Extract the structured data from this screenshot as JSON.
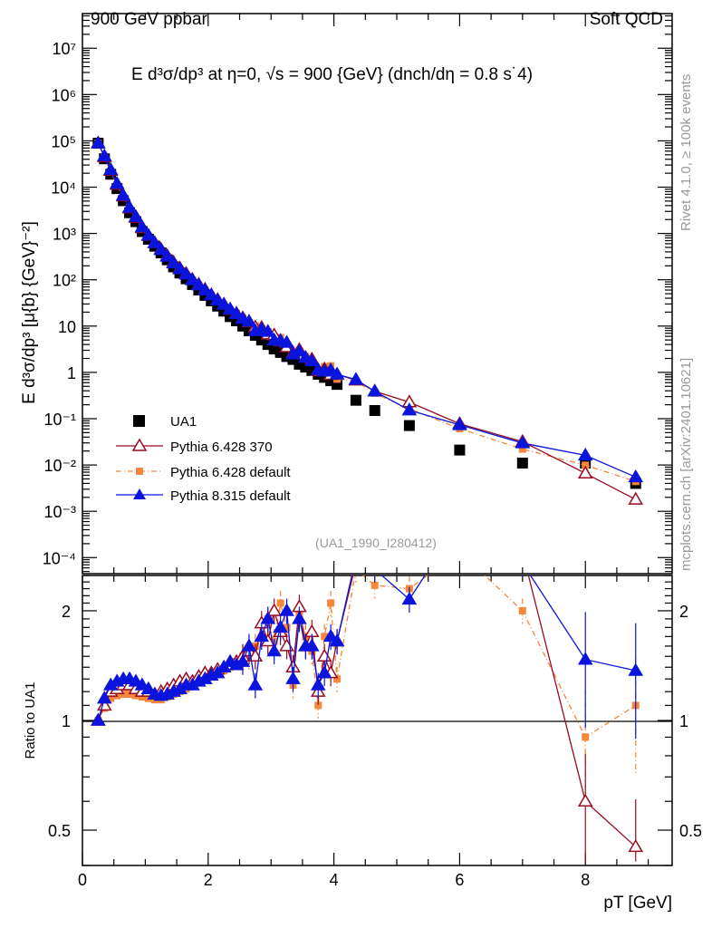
{
  "header": {
    "left": "900 GeV ppbar",
    "right": "Soft QCD"
  },
  "side_labels": {
    "rivet": "Rivet 4.1.0, ≥ 100k events",
    "mcplots": "mcplots.cern.ch [arXiv:2401.10621]"
  },
  "chart_data": {
    "type": "scatter",
    "title": "E   d³σ/dp³ at η=0, √s = 900 {GeV} (dnch/dη = 0.8 s˙4)",
    "analysis_id": "(UA1_1990_I280412)",
    "xlabel": "pT [GeV]",
    "ylabel": "E d³σ/dp³ [μ{b} {GeV}⁻²]",
    "ratio_ylabel": "Ratio to UA1",
    "xlim": [
      0,
      9.38
    ],
    "ylim": [
      4.5e-05,
      56000000
    ],
    "ratio_ylim": [
      0.4,
      2.5
    ],
    "yscale": "log",
    "legend_position": "bottom-left",
    "x_ticks": [
      "0",
      "2",
      "4",
      "6",
      "8"
    ],
    "y_ticks": [
      "10⁻⁴",
      "10⁻³",
      "10⁻²",
      "10⁻¹",
      "1",
      "10",
      "10²",
      "10³",
      "10⁴",
      "10⁵",
      "10⁶",
      "10⁷"
    ],
    "ratio_ticks": [
      "0.5",
      "1",
      "2"
    ],
    "x": [
      0.25,
      0.35,
      0.45,
      0.55,
      0.65,
      0.75,
      0.85,
      0.95,
      1.05,
      1.15,
      1.25,
      1.35,
      1.45,
      1.55,
      1.65,
      1.75,
      1.85,
      1.95,
      2.05,
      2.15,
      2.25,
      2.35,
      2.45,
      2.55,
      2.65,
      2.75,
      2.85,
      2.95,
      3.05,
      3.15,
      3.25,
      3.35,
      3.45,
      3.55,
      3.65,
      3.75,
      3.85,
      3.95,
      4.05,
      4.35,
      4.65,
      5.2,
      6.0,
      7.0,
      8.0,
      8.8
    ],
    "data": {
      "name": "UA1",
      "color": "#000000",
      "values": [
        89000,
        41000,
        19000,
        9300,
        5100,
        2800,
        1800,
        1100,
        750,
        530,
        380,
        270,
        190,
        140,
        105,
        79,
        60,
        46,
        35,
        27,
        21,
        16,
        13,
        10,
        7.9,
        6.3,
        5.0,
        4.0,
        3.2,
        2.7,
        2.2,
        1.9,
        1.5,
        1.3,
        1.1,
        0.91,
        0.78,
        0.66,
        0.55,
        0.25,
        0.15,
        0.071,
        0.021,
        0.011,
        0.011,
        0.004
      ]
    },
    "series": [
      {
        "name": "Pythia 6.428 370",
        "color": "#9b0a1e",
        "marker": "open-triangle",
        "line": "solid",
        "ratio": [
          1.0,
          1.1,
          1.2,
          1.22,
          1.25,
          1.25,
          1.22,
          1.2,
          1.2,
          1.18,
          1.2,
          1.22,
          1.25,
          1.28,
          1.3,
          1.28,
          1.32,
          1.35,
          1.35,
          1.38,
          1.4,
          1.42,
          1.45,
          1.5,
          1.55,
          1.5,
          1.85,
          1.65,
          2.0,
          1.75,
          1.6,
          1.4,
          2.05,
          1.6,
          1.75,
          1.2,
          1.5,
          1.35,
          1.65,
          2.7,
          2.6,
          3.2,
          3.7,
          2.9,
          0.6,
          0.45
        ]
      },
      {
        "name": "Pythia 6.428 default",
        "color": "#f4873a",
        "marker": "square",
        "line": "dashdot",
        "ratio": [
          1.0,
          1.08,
          1.15,
          1.17,
          1.18,
          1.18,
          1.17,
          1.16,
          1.15,
          1.14,
          1.14,
          1.16,
          1.18,
          1.2,
          1.22,
          1.25,
          1.27,
          1.3,
          1.32,
          1.34,
          1.37,
          1.4,
          1.45,
          1.5,
          1.5,
          1.6,
          1.7,
          1.9,
          1.65,
          2.1,
          1.8,
          1.25,
          1.95,
          1.7,
          1.55,
          1.1,
          1.7,
          2.1,
          1.3,
          2.6,
          2.35,
          2.3,
          2.9,
          2.0,
          0.9,
          1.1
        ]
      },
      {
        "name": "Pythia 8.315 default",
        "color": "#0a14dc",
        "marker": "triangle",
        "line": "solid",
        "ratio": [
          1.0,
          1.15,
          1.25,
          1.28,
          1.3,
          1.3,
          1.28,
          1.25,
          1.22,
          1.18,
          1.17,
          1.18,
          1.2,
          1.22,
          1.25,
          1.25,
          1.28,
          1.3,
          1.33,
          1.35,
          1.4,
          1.45,
          1.42,
          1.45,
          1.6,
          1.25,
          1.7,
          1.9,
          1.55,
          1.8,
          2.0,
          1.3,
          1.9,
          1.6,
          1.6,
          1.25,
          1.35,
          1.7,
          1.65,
          2.8,
          2.6,
          2.15,
          3.5,
          2.7,
          1.47,
          1.37
        ]
      }
    ]
  }
}
